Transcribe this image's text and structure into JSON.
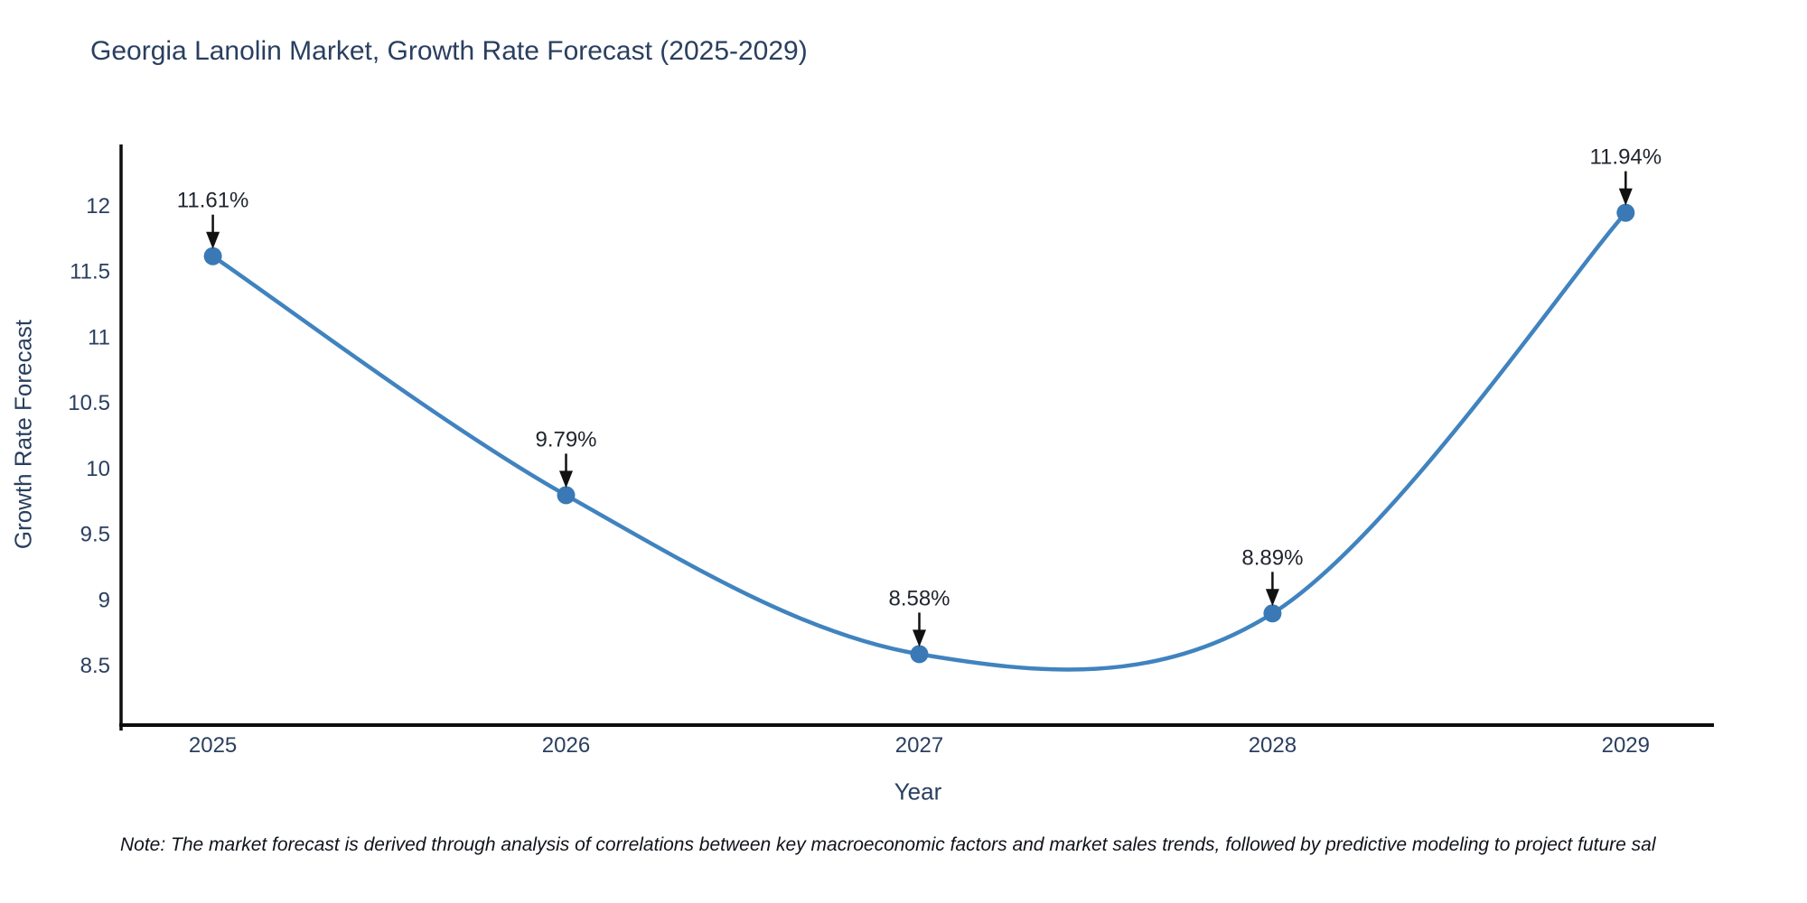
{
  "title": "Georgia Lanolin Market, Growth Rate Forecast (2025-2029)",
  "note": "Note: The market forecast is derived through analysis of correlations between key macroeconomic factors and market sales trends, followed by predictive modeling to project future sal",
  "chart_data": {
    "type": "line",
    "line_shape": "spline",
    "title": "Georgia Lanolin Market, Growth Rate Forecast (2025-2029)",
    "xlabel": "Year",
    "ylabel": "Growth Rate Forecast",
    "x": [
      2025,
      2026,
      2027,
      2028,
      2029
    ],
    "series": [
      {
        "name": "Growth Rate Forecast",
        "values": [
          11.61,
          9.79,
          8.58,
          8.89,
          11.94
        ]
      }
    ],
    "point_labels": [
      "11.61%",
      "9.79%",
      "8.58%",
      "8.89%",
      "11.94%"
    ],
    "xtick_labels": [
      "2025",
      "2026",
      "2027",
      "2028",
      "2029"
    ],
    "yticks": [
      8.5,
      9,
      9.5,
      10,
      10.5,
      11,
      11.5,
      12
    ],
    "ytick_labels": [
      "8.5",
      "9",
      "9.5",
      "10",
      "10.5",
      "11",
      "11.5",
      "12"
    ],
    "xlim": [
      2024.74,
      2029.25
    ],
    "ylim": [
      8.04,
      12.46
    ],
    "grid": false,
    "legend": false,
    "annotations_arrows": true,
    "colors": {
      "line": "#4083bf",
      "marker": "#3a79b6",
      "axis": "#0d0d0d",
      "title": "#2a3f5f",
      "tick": "#2a3f5f",
      "annotation_text": "#20252e",
      "arrow": "#111111",
      "background": "#ffffff"
    }
  }
}
